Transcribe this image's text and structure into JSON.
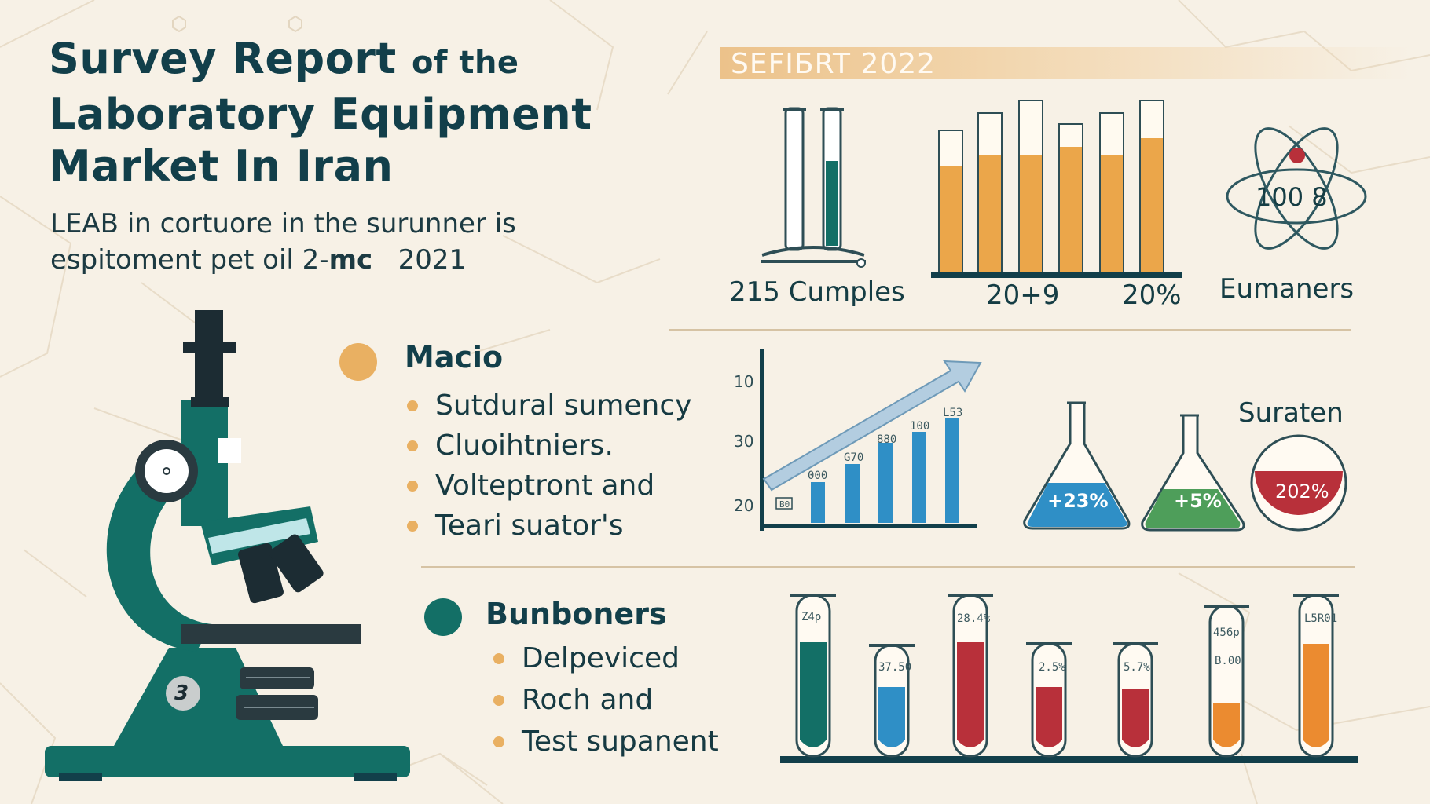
{
  "header": {
    "title_line1_big": "Survey Report",
    "title_line1_small": "of the",
    "title_line2": "Laboratory Equipment",
    "title_line3": "Market In Iran",
    "subtitle_line1": "LEAB in cortuore in the surunner is",
    "subtitle_line2_pre": "espitoment pet oil 2-",
    "subtitle_line2_bold": "mc",
    "subtitle_line2_post": "2021"
  },
  "banner": {
    "text": "SEFIБRT 2022"
  },
  "top_stats": {
    "samples_label": "215 Cumples",
    "bar_label_left": "20+9",
    "bar_label_right": "20%",
    "atom_value": "100 8",
    "atom_label": "Eumaners"
  },
  "section_macio": {
    "heading": "Macio",
    "items": [
      "Sutdural sumency",
      "Cluoihtniers.",
      "Volteptront and",
      "Teari suator's"
    ]
  },
  "section_bunboners": {
    "heading": "Bunboners",
    "items": [
      "Delpeviced",
      "Roch and",
      "Test supanent"
    ]
  },
  "trend_chart": {
    "ytick_top": "10",
    "ytick_mid": "30",
    "ytick_bottom": "20",
    "bar_labels": [
      "B0",
      "000",
      "G70",
      "880",
      "100",
      "L53"
    ]
  },
  "flasks": {
    "title": "Suraten",
    "values": [
      "+23%",
      "+5%",
      "202%"
    ]
  },
  "tubes": {
    "labels": [
      "Z4p",
      "37.50",
      "28.4%",
      "2.5%",
      "5.7%",
      "456p",
      "B.00",
      "L5R01"
    ]
  },
  "colors": {
    "teal": "#136f66",
    "orange": "#eba64a",
    "blue": "#2f8fc6",
    "red": "#b8303a",
    "green": "#4e9e5a",
    "navy": "#123f4a"
  },
  "icons": {
    "microscope": "microscope-icon",
    "test_tubes": "test-tube-icon",
    "atom": "atom-icon",
    "flask": "flask-icon"
  },
  "microscope_badge": "3"
}
